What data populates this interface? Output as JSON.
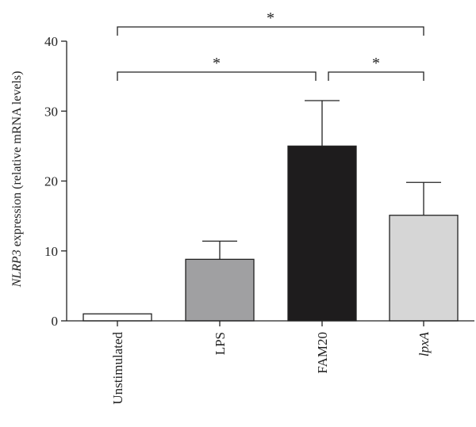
{
  "chart_data": {
    "type": "bar",
    "categories": [
      "Unstimulated",
      "LPS",
      "FAM20",
      "lpxA"
    ],
    "category_italic": [
      false,
      false,
      false,
      true
    ],
    "values": [
      1.0,
      8.8,
      25.0,
      15.1
    ],
    "errors": [
      0,
      2.6,
      6.5,
      4.7
    ],
    "colors": [
      "#ffffff",
      "#a0a0a2",
      "#1e1c1d",
      "#d6d6d6"
    ],
    "ylabel_italic_part": "NLRP3",
    "ylabel_rest": " expression (relative mRNA levels)",
    "ylim": [
      0,
      40
    ],
    "yticks": [
      0,
      10,
      20,
      30,
      40
    ],
    "significance": [
      {
        "from": 0,
        "to": 3,
        "label": "*",
        "level": 1
      },
      {
        "from": 0,
        "to": 2,
        "label": "*",
        "level": 0
      },
      {
        "from": 2,
        "to": 3,
        "label": "*",
        "level": 0
      }
    ]
  }
}
